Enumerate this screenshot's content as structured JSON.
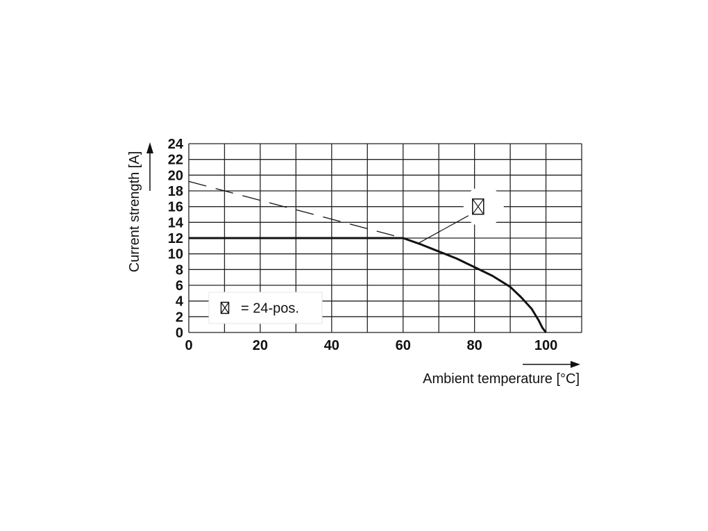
{
  "chart_data": {
    "type": "line",
    "xlabel": "Ambient temperature [°C]",
    "ylabel": "Current strength [A]",
    "xlim": [
      0,
      110
    ],
    "ylim": [
      0,
      24
    ],
    "x_ticks": [
      0,
      20,
      40,
      60,
      80,
      100
    ],
    "y_ticks": [
      0,
      2,
      4,
      6,
      8,
      10,
      12,
      14,
      16,
      18,
      20,
      22,
      24
    ],
    "grid": true,
    "legend": {
      "placement": "bottom-left",
      "text": "= 24-pos.",
      "symbol": "boxed-x"
    },
    "series": [
      {
        "style": "solid",
        "points": [
          [
            0,
            12
          ],
          [
            60,
            12
          ],
          [
            65,
            11.2
          ],
          [
            70,
            10.3
          ],
          [
            75,
            9.4
          ],
          [
            80,
            8.3
          ],
          [
            85,
            7.2
          ],
          [
            90,
            5.8
          ],
          [
            93,
            4.5
          ],
          [
            96,
            3
          ],
          [
            98,
            1.5
          ],
          [
            99,
            0.6
          ],
          [
            100,
            0
          ]
        ]
      },
      {
        "style": "dashed",
        "points": [
          [
            0,
            19.2
          ],
          [
            60,
            12
          ]
        ]
      }
    ],
    "annotation": {
      "symbol": "boxed-x",
      "at": [
        81,
        16
      ],
      "points_to": [
        64.5,
        11.4
      ]
    }
  }
}
